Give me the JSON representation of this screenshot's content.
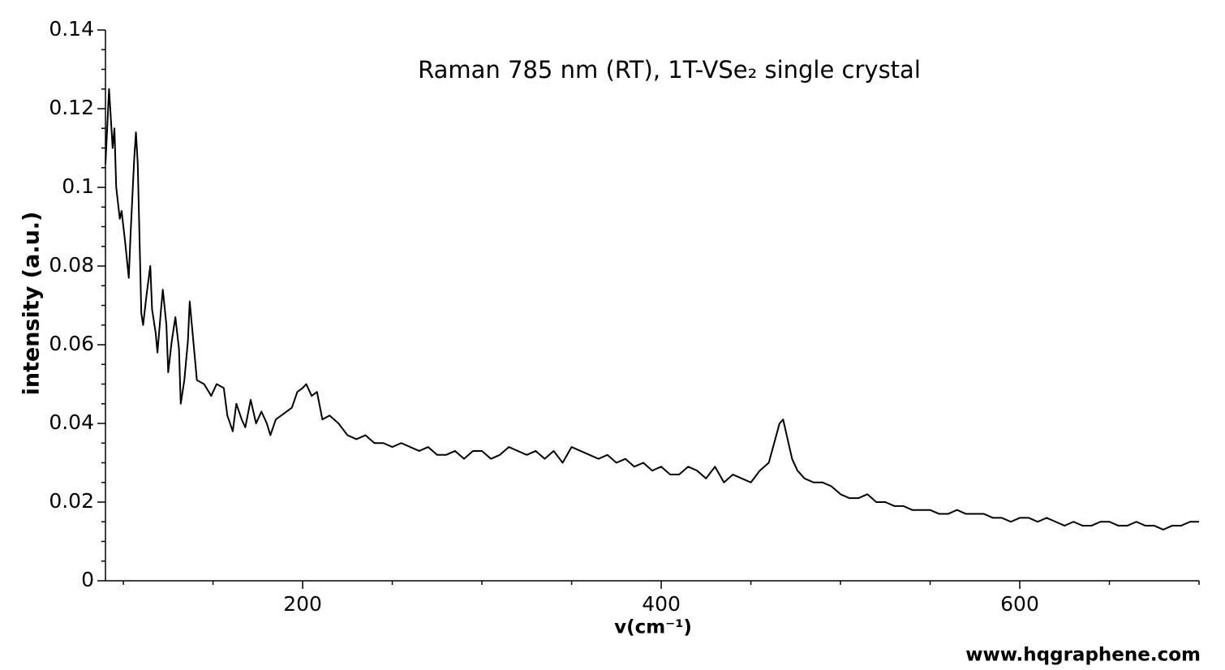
{
  "chart_data": {
    "type": "line",
    "title": "Raman 785 nm (RT), 1T-VSe₂ single crystal",
    "xlabel": "v(cm⁻¹)",
    "ylabel": "intensity (a.u.)",
    "watermark": "www.hqgraphene.com",
    "xlim": [
      90,
      700
    ],
    "ylim": [
      0,
      0.14
    ],
    "xticks": [
      200,
      400,
      600
    ],
    "yticks": [
      0,
      0.02,
      0.04,
      0.06,
      0.08,
      0.1,
      0.12,
      0.14
    ],
    "x_minor_ticks": [
      100,
      150,
      250,
      300,
      350,
      450,
      500,
      550,
      650,
      700
    ],
    "y_minor_ticks": [
      0.005,
      0.01,
      0.015,
      0.025,
      0.03,
      0.035,
      0.045,
      0.05,
      0.055,
      0.065,
      0.07,
      0.075,
      0.085,
      0.09,
      0.095,
      0.105,
      0.11,
      0.115,
      0.125,
      0.13,
      0.135
    ],
    "color": "#000000",
    "x": [
      90,
      92,
      94,
      95,
      96,
      98,
      99,
      101,
      103,
      104,
      106,
      107,
      108,
      110,
      111,
      113,
      115,
      116,
      118,
      119,
      121,
      122,
      124,
      125,
      127,
      129,
      131,
      132,
      134,
      136,
      137,
      139,
      141,
      145,
      149,
      152,
      156,
      158,
      161,
      163,
      166,
      168,
      171,
      174,
      177,
      180,
      182,
      185,
      188,
      191,
      194,
      197,
      200,
      202,
      205,
      208,
      211,
      215,
      220,
      225,
      230,
      235,
      240,
      245,
      250,
      255,
      260,
      265,
      270,
      275,
      280,
      285,
      290,
      295,
      300,
      305,
      310,
      315,
      320,
      325,
      330,
      335,
      340,
      345,
      350,
      355,
      360,
      365,
      370,
      375,
      380,
      385,
      390,
      395,
      400,
      405,
      410,
      415,
      420,
      425,
      430,
      435,
      440,
      445,
      450,
      455,
      460,
      463,
      466,
      468,
      470,
      473,
      476,
      480,
      485,
      490,
      495,
      500,
      505,
      510,
      515,
      520,
      525,
      530,
      535,
      540,
      545,
      550,
      555,
      560,
      565,
      570,
      575,
      580,
      585,
      590,
      595,
      600,
      605,
      610,
      615,
      620,
      625,
      630,
      635,
      640,
      645,
      650,
      655,
      660,
      665,
      670,
      675,
      680,
      685,
      690,
      695,
      700
    ],
    "values": [
      0.106,
      0.125,
      0.11,
      0.115,
      0.1,
      0.092,
      0.094,
      0.086,
      0.077,
      0.088,
      0.107,
      0.114,
      0.106,
      0.068,
      0.065,
      0.073,
      0.08,
      0.069,
      0.063,
      0.058,
      0.069,
      0.074,
      0.065,
      0.053,
      0.061,
      0.067,
      0.059,
      0.045,
      0.051,
      0.061,
      0.071,
      0.061,
      0.051,
      0.05,
      0.047,
      0.05,
      0.049,
      0.042,
      0.038,
      0.045,
      0.041,
      0.039,
      0.046,
      0.04,
      0.043,
      0.04,
      0.037,
      0.041,
      0.042,
      0.043,
      0.044,
      0.048,
      0.049,
      0.05,
      0.047,
      0.048,
      0.041,
      0.042,
      0.04,
      0.037,
      0.036,
      0.037,
      0.035,
      0.035,
      0.034,
      0.035,
      0.034,
      0.033,
      0.034,
      0.032,
      0.032,
      0.033,
      0.031,
      0.033,
      0.033,
      0.031,
      0.032,
      0.034,
      0.033,
      0.032,
      0.033,
      0.031,
      0.033,
      0.03,
      0.034,
      0.033,
      0.032,
      0.031,
      0.032,
      0.03,
      0.031,
      0.029,
      0.03,
      0.028,
      0.029,
      0.027,
      0.027,
      0.029,
      0.028,
      0.026,
      0.029,
      0.025,
      0.027,
      0.026,
      0.025,
      0.028,
      0.03,
      0.035,
      0.04,
      0.041,
      0.037,
      0.031,
      0.028,
      0.026,
      0.025,
      0.025,
      0.024,
      0.022,
      0.021,
      0.021,
      0.022,
      0.02,
      0.02,
      0.019,
      0.019,
      0.018,
      0.018,
      0.018,
      0.017,
      0.017,
      0.018,
      0.017,
      0.017,
      0.017,
      0.016,
      0.016,
      0.015,
      0.016,
      0.016,
      0.015,
      0.016,
      0.015,
      0.014,
      0.015,
      0.014,
      0.014,
      0.015,
      0.015,
      0.014,
      0.014,
      0.015,
      0.014,
      0.014,
      0.013,
      0.014,
      0.014,
      0.015,
      0.015
    ]
  }
}
